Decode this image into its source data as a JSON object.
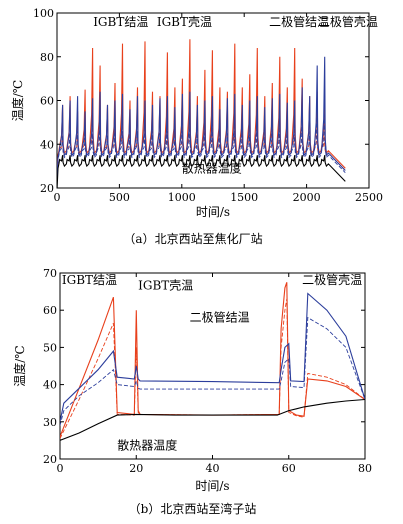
{
  "chart_data": [
    {
      "type": "line",
      "caption": "（a）北京西站至焦化厂站",
      "xlabel": "时间/s",
      "ylabel": "温度/℃",
      "xlim": [
        0,
        2500
      ],
      "ylim": [
        20,
        100
      ],
      "xticks": [
        0,
        500,
        1000,
        1500,
        2000,
        2500
      ],
      "yticks": [
        20,
        40,
        60,
        80,
        100
      ],
      "annotations": [
        {
          "text": "IGBT结温",
          "x": 290,
          "y": 94
        },
        {
          "text": "IGBT壳温",
          "x": 800,
          "y": 94
        },
        {
          "text": "二极管结温",
          "x": 1700,
          "y": 94
        },
        {
          "text": "二极管壳温",
          "x": 2090,
          "y": 94
        },
        {
          "text": "散热器温度",
          "x": 1000,
          "y": 27
        }
      ],
      "cycle": {
        "count": 36,
        "t_start": 15,
        "period": 60,
        "t_end": 2200,
        "cooldown_end": 2310
      },
      "series": [
        {
          "name": "IGBT结温",
          "color": "#e8401c",
          "dash": "",
          "base": 37,
          "peaks": [
            58,
            62,
            55,
            65,
            84,
            76,
            58,
            68,
            86,
            60,
            66,
            87,
            64,
            62,
            82,
            66,
            70,
            88,
            62,
            74,
            83,
            66,
            64,
            86,
            66,
            72,
            84,
            62,
            68,
            80,
            66,
            84,
            70,
            62,
            64,
            60
          ]
        },
        {
          "name": "IGBT壳温",
          "color": "#e8401c",
          "dash": "4,2",
          "base": 36,
          "peaks": [
            44,
            45,
            43,
            46,
            52,
            50,
            44,
            47,
            53,
            45,
            46,
            53,
            46,
            45,
            51,
            46,
            48,
            54,
            45,
            49,
            52,
            46,
            45,
            53,
            46,
            48,
            52,
            45,
            47,
            51,
            46,
            52,
            48,
            45,
            46,
            44
          ]
        },
        {
          "name": "二极管结温",
          "color": "#2c3e9c",
          "dash": "",
          "base": 36,
          "peaks": [
            58,
            60,
            62,
            55,
            61,
            64,
            58,
            60,
            63,
            56,
            62,
            60,
            58,
            61,
            62,
            57,
            63,
            64,
            58,
            60,
            62,
            56,
            61,
            63,
            58,
            60,
            62,
            57,
            61,
            63,
            59,
            60,
            66,
            62,
            76,
            80
          ]
        },
        {
          "name": "二极管壳温",
          "color": "#2c3e9c",
          "dash": "4,2",
          "base": 35,
          "peaks": [
            44,
            45,
            46,
            43,
            45,
            47,
            44,
            45,
            46,
            43,
            46,
            45,
            44,
            45,
            46,
            43,
            46,
            47,
            44,
            45,
            46,
            43,
            45,
            46,
            44,
            45,
            46,
            43,
            45,
            46,
            44,
            45,
            48,
            46,
            52,
            54
          ]
        },
        {
          "name": "散热器温度",
          "color": "#000000",
          "dash": "",
          "base": 31,
          "peaks": [
            35,
            35,
            35,
            35,
            35,
            35,
            35,
            35,
            35,
            35,
            35,
            35,
            35,
            35,
            35,
            35,
            35,
            35,
            35,
            35,
            35,
            35,
            35,
            35,
            35,
            35,
            35,
            35,
            35,
            35,
            35,
            35,
            35,
            35,
            35,
            35
          ]
        }
      ]
    },
    {
      "type": "line",
      "caption": "（b）北京西站至湾子站",
      "xlabel": "时间/s",
      "ylabel": "温度/℃",
      "xlim": [
        0,
        80
      ],
      "ylim": [
        20,
        70
      ],
      "xticks": [
        0,
        20,
        40,
        60,
        80
      ],
      "yticks": [
        20,
        30,
        40,
        50,
        60,
        70
      ],
      "annotations": [
        {
          "text": "IGBT结温",
          "x": 0.5,
          "y": 67
        },
        {
          "text": "IGBT壳温",
          "x": 20.5,
          "y": 65.5
        },
        {
          "text": "二极管壳温",
          "x": 63.5,
          "y": 67
        },
        {
          "text": "二极管结温",
          "x": 34,
          "y": 57
        },
        {
          "text": "散热器温度",
          "x": 15,
          "y": 22.5
        }
      ],
      "series": [
        {
          "name": "IGBT结温",
          "color": "#e8401c",
          "dash": "",
          "x": [
            0,
            5,
            10,
            14,
            15,
            19.5,
            20,
            20.5,
            21,
            40,
            57.5,
            58,
            59,
            59.5,
            60,
            62,
            64,
            65,
            70,
            75,
            80
          ],
          "y": [
            26,
            39,
            52,
            63.5,
            32.5,
            32,
            60,
            33,
            32,
            31.8,
            32,
            55,
            66,
            67.5,
            33,
            31.8,
            31.5,
            41.5,
            41,
            39.5,
            36
          ]
        },
        {
          "name": "IGBT壳温",
          "color": "#e8401c",
          "dash": "4,2",
          "x": [
            0,
            5,
            10,
            14,
            15,
            19.5,
            20,
            20.5,
            21,
            40,
            57.5,
            58,
            59,
            59.5,
            60,
            62,
            64,
            65,
            70,
            75,
            80
          ],
          "y": [
            25.5,
            36,
            47,
            56.5,
            32,
            31.8,
            50,
            32.5,
            32,
            31.8,
            32,
            50,
            60,
            63,
            32.5,
            31.6,
            31.2,
            43,
            42,
            40,
            36
          ]
        },
        {
          "name": "二极管结温",
          "color": "#2c3e9c",
          "dash": "",
          "x": [
            0,
            1,
            5,
            10,
            14,
            15,
            19.5,
            20,
            20.5,
            21,
            40,
            57.5,
            58,
            59,
            60,
            60.5,
            64,
            65,
            70,
            75,
            80
          ],
          "y": [
            30,
            35,
            39,
            44,
            49,
            42,
            41.5,
            45,
            41.5,
            41,
            40.8,
            40.5,
            44,
            50,
            51,
            41,
            40.8,
            64.5,
            60,
            53,
            36
          ]
        },
        {
          "name": "二极管壳温",
          "color": "#2c3e9c",
          "dash": "4,2",
          "x": [
            0,
            1,
            5,
            10,
            14,
            15,
            19.5,
            20,
            20.5,
            21,
            40,
            57.5,
            58,
            59,
            60,
            60.5,
            64,
            65,
            70,
            75,
            80
          ],
          "y": [
            29,
            33,
            37,
            40.5,
            44,
            40,
            39.5,
            41,
            39,
            38.8,
            38.8,
            38.8,
            41,
            46,
            47,
            39.5,
            39.2,
            58,
            55,
            50,
            36
          ]
        },
        {
          "name": "散热器温度",
          "color": "#000000",
          "dash": "",
          "x": [
            0,
            5,
            10,
            15,
            20,
            30,
            40,
            50,
            57,
            60,
            62,
            64,
            70,
            75,
            80
          ],
          "y": [
            25,
            27,
            29.5,
            31.8,
            32,
            31.8,
            31.8,
            31.8,
            31.8,
            33,
            33.5,
            34,
            35,
            35.6,
            36
          ]
        }
      ]
    }
  ]
}
